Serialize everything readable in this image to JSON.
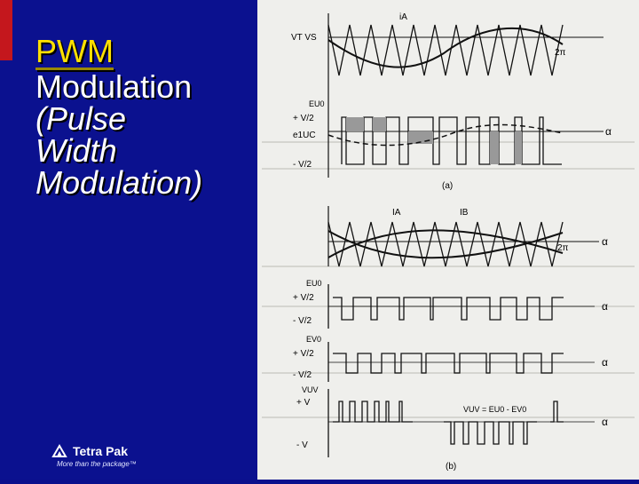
{
  "slide": {
    "title_line1": "PWM",
    "title_line2": "Modulation",
    "title_line3": "(Pulse",
    "title_line4": "Width",
    "title_line5": "Modulation)"
  },
  "logo": {
    "brand": "Tetra Pak",
    "tagline": "More than the package™"
  },
  "figure": {
    "labels": {
      "ia": "iA",
      "vt_vs": "VT VS",
      "two_pi_a": "2π",
      "eu0": "EU0",
      "plus_v2": "+ V/2",
      "e1uc": "e1UC",
      "minus_v2": "- V/2",
      "caption_a": "(a)",
      "ia2": "IA",
      "ib2": "IB",
      "two_pi_b": "2π",
      "eu0_b": "EU0",
      "plus_v2_b": "+ V/2",
      "minus_v2_b": "- V/2",
      "ev0": "EV0",
      "plus_v2_c": "+ V/2",
      "minus_v2_c": "- V/2",
      "vuv": "VUV",
      "plus_v": "+ V",
      "vuv_eq": "VUV = EU0 - EV0",
      "minus_v": "- V",
      "caption_b": "(b)",
      "alpha": "α"
    }
  }
}
